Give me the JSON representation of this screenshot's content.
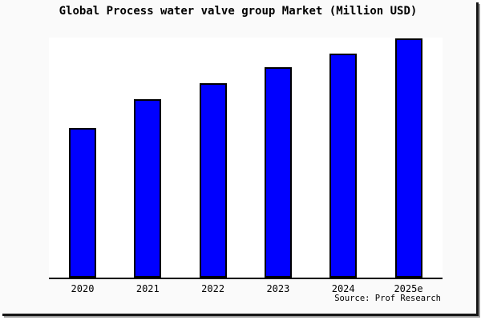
{
  "title": "Global Process water valve group Market (Million USD)",
  "source": "Source: Prof Research",
  "colors": {
    "bar_fill": "#0000ff",
    "bar_border": "#000000",
    "canvas_bg": "#fafafa",
    "plot_bg": "#ffffff",
    "axis": "#000000",
    "shadow_dark": "#161616",
    "shadow_gray": "#999999"
  },
  "chart_data": {
    "type": "bar",
    "title": "Global Process water valve group Market (Million USD)",
    "categories": [
      "2020",
      "2021",
      "2022",
      "2023",
      "2024",
      "2025e"
    ],
    "values": [
      187,
      223,
      243,
      263,
      280,
      299
    ],
    "value_scale": "relative bar heights in pixels; chart displays no numeric y-axis, gridlines or data labels",
    "xlabel": "",
    "ylabel": "",
    "grid": false,
    "legend": false,
    "source_note": "Source: Prof Research"
  }
}
